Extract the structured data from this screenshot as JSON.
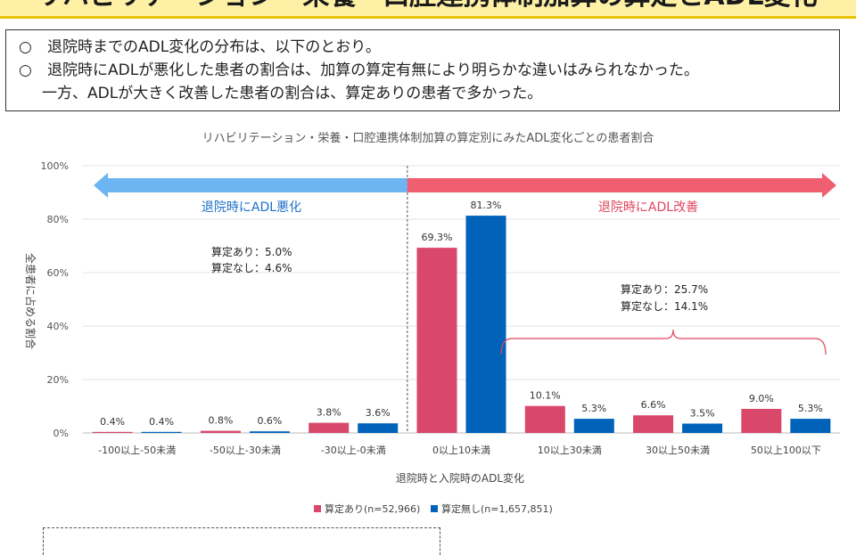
{
  "title": "リハビリテーション・栄養・口腔連携体制加算の算定とADL変化",
  "summary": [
    "退院時までのADL変化の分布は、以下のとおり。",
    "退院時にADLが悪化した患者の割合は、加算の算定有無により明らかな違いはみられなかった。",
    "一方、ADLが大きく改善した患者の割合は、算定ありの患者で多かった。"
  ],
  "bullet": "○",
  "chart_data": {
    "type": "bar",
    "title": "リハビリテーション・栄養・口腔連携体制加算の算定別にみたADL変化ごとの患者割合",
    "xlabel": "退院時と入院時のADL変化",
    "ylabel": "全患者に占める割合",
    "ylim": [
      0,
      100
    ],
    "yticks": [
      "0%",
      "20%",
      "40%",
      "60%",
      "80%",
      "100%"
    ],
    "categories": [
      "-100以上-50未満",
      "-50以上-30未満",
      "-30以上-0未満",
      "0以上10未満",
      "10以上30未満",
      "30以上50未満",
      "50以上100以下"
    ],
    "series": [
      {
        "name": "算定あり(n=52,966)",
        "color": "#d9476b",
        "values": [
          0.4,
          0.8,
          3.8,
          69.3,
          10.1,
          6.6,
          9.0
        ],
        "labels": [
          "0.4%",
          "0.8%",
          "3.8%",
          "69.3%",
          "10.1%",
          "6.6%",
          "9.0%"
        ]
      },
      {
        "name": "算定無し(n=1,657,851)",
        "color": "#0062b8",
        "values": [
          0.4,
          0.6,
          3.6,
          81.3,
          5.3,
          3.5,
          5.3
        ],
        "labels": [
          "0.4%",
          "0.6%",
          "3.6%",
          "81.3%",
          "5.3%",
          "3.5%",
          "5.3%"
        ]
      }
    ],
    "grid": true,
    "legend": "bottom",
    "annotations": {
      "worse_label": "退院時にADL悪化",
      "better_label": "退院時にADL改善",
      "worse_color": "#6cb4f2",
      "better_color": "#ef5f70",
      "worse_with": "算定あり：5.0%",
      "worse_without": "算定なし：4.6%",
      "better_with": "算定あり：25.7%",
      "better_without": "算定なし：14.1%"
    }
  }
}
